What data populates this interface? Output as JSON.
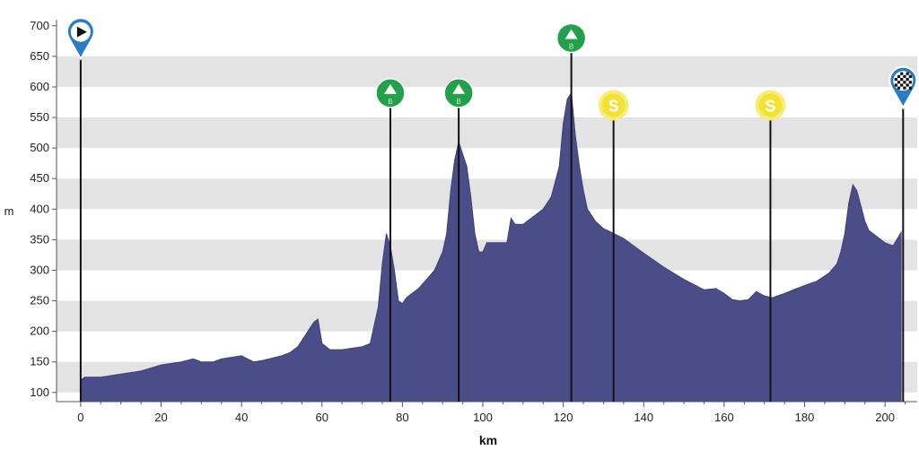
{
  "chart_data": {
    "type": "area",
    "title": "",
    "xlabel": "km",
    "ylabel": "m",
    "xlim": [
      -6,
      208
    ],
    "ylim": [
      85,
      710
    ],
    "x_ticks": [
      0,
      20,
      40,
      60,
      80,
      100,
      120,
      140,
      160,
      180,
      200
    ],
    "y_ticks": [
      100,
      150,
      200,
      250,
      300,
      350,
      400,
      450,
      500,
      550,
      600,
      650,
      700
    ],
    "grid": "horizontal alternating bands",
    "colors": {
      "fill": "#4a4d87",
      "band": "#e3e3e3",
      "climb_marker": "#22a04a",
      "sprint_marker": "#f3e234",
      "start_finish_marker": "#2b7bc4"
    },
    "series": [
      {
        "x": [
          0,
          1,
          5,
          10,
          15,
          20,
          25,
          28,
          30,
          33,
          35,
          38,
          40,
          43,
          45,
          50,
          52,
          54,
          56,
          58,
          59,
          60,
          62,
          65,
          70,
          72,
          74,
          75,
          76,
          77,
          78,
          79,
          80,
          81,
          82,
          84,
          86,
          88,
          90,
          91,
          92,
          93,
          94,
          95,
          96,
          97,
          98,
          99,
          100,
          101,
          103,
          105,
          106,
          107,
          108,
          110,
          112,
          115,
          117,
          119,
          120,
          121,
          122,
          123,
          124,
          125,
          126,
          128,
          130,
          132,
          135,
          140,
          145,
          150,
          155,
          158,
          160,
          162,
          164,
          166,
          168,
          170,
          172,
          175,
          178,
          180,
          183,
          186,
          188,
          189,
          190,
          191,
          192,
          193,
          194,
          195,
          196,
          198,
          200,
          202,
          204
        ],
        "y": [
          120,
          125,
          125,
          130,
          135,
          145,
          150,
          155,
          150,
          150,
          155,
          158,
          160,
          150,
          152,
          160,
          165,
          175,
          195,
          215,
          220,
          180,
          170,
          170,
          175,
          180,
          240,
          310,
          360,
          340,
          300,
          250,
          245,
          255,
          260,
          270,
          285,
          300,
          330,
          360,
          430,
          480,
          510,
          490,
          470,
          420,
          360,
          330,
          330,
          345,
          345,
          345,
          345,
          385,
          375,
          375,
          385,
          400,
          420,
          470,
          540,
          580,
          590,
          520,
          470,
          430,
          400,
          380,
          368,
          362,
          352,
          328,
          305,
          285,
          268,
          270,
          262,
          252,
          250,
          252,
          265,
          258,
          255,
          262,
          270,
          275,
          282,
          295,
          310,
          330,
          360,
          410,
          440,
          430,
          405,
          380,
          365,
          355,
          345,
          340,
          362
        ]
      }
    ],
    "markers": [
      {
        "type": "start",
        "x": 0,
        "y": 690
      },
      {
        "type": "climb",
        "x": 77,
        "y": 590,
        "letter": "B"
      },
      {
        "type": "climb",
        "x": 94,
        "y": 590,
        "letter": "B"
      },
      {
        "type": "climb",
        "x": 122,
        "y": 680,
        "letter": "B"
      },
      {
        "type": "sprint",
        "x": 132.5,
        "y": 570,
        "letter": "S"
      },
      {
        "type": "sprint",
        "x": 171.5,
        "y": 570,
        "letter": "S"
      },
      {
        "type": "finish",
        "x": 204.5,
        "y": 610
      }
    ]
  }
}
